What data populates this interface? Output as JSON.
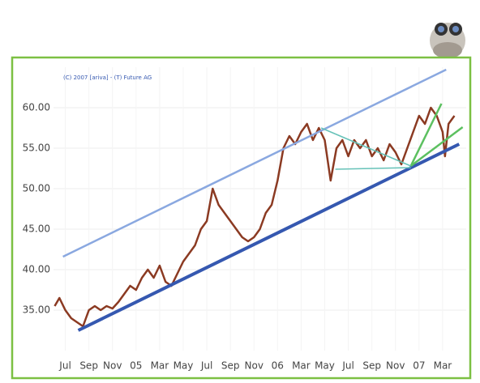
{
  "chart_data": {
    "type": "line",
    "note_text": "(C) 2007 [ariva] - (T) Future AG",
    "xlim": [
      -1,
      34
    ],
    "xticks": [
      {
        "value": 0,
        "label": "Jul"
      },
      {
        "value": 2,
        "label": "Sep"
      },
      {
        "value": 4,
        "label": "Nov"
      },
      {
        "value": 6,
        "label": "05"
      },
      {
        "value": 8,
        "label": "Mar"
      },
      {
        "value": 10,
        "label": "May"
      },
      {
        "value": 12,
        "label": "Jul"
      },
      {
        "value": 14,
        "label": "Sep"
      },
      {
        "value": 16,
        "label": "Nov"
      },
      {
        "value": 18,
        "label": "06"
      },
      {
        "value": 20,
        "label": "Mar"
      },
      {
        "value": 22,
        "label": "May"
      },
      {
        "value": 24,
        "label": "Jul"
      },
      {
        "value": 26,
        "label": "Sep"
      },
      {
        "value": 28,
        "label": "Nov"
      },
      {
        "value": 30,
        "label": "07"
      },
      {
        "value": 32,
        "label": "Mar"
      }
    ],
    "ylim": [
      30,
      65
    ],
    "yticks": [
      {
        "value": 35,
        "label": "35.00"
      },
      {
        "value": 40,
        "label": "40.00"
      },
      {
        "value": 45,
        "label": "45.00"
      },
      {
        "value": 50,
        "label": "50.00"
      },
      {
        "value": 55,
        "label": "55.00"
      },
      {
        "value": 60,
        "label": "60.00"
      }
    ],
    "grid": true,
    "series": [
      {
        "color": "#8b3a22",
        "width": 2.5,
        "x": [
          -0.9,
          -0.5,
          0,
          0.5,
          1,
          1.5,
          2,
          2.5,
          3,
          3.5,
          4,
          4.5,
          5,
          5.5,
          6,
          6.5,
          7,
          7.5,
          8,
          8.5,
          9,
          9.5,
          10,
          10.5,
          11,
          11.5,
          12,
          12.5,
          13,
          13.5,
          14,
          14.5,
          15,
          15.5,
          16,
          16.5,
          17,
          17.5,
          18,
          18.5,
          19,
          19.5,
          20,
          20.5,
          21,
          21.5,
          22,
          22.5,
          23,
          23.5,
          24,
          24.5,
          25,
          25.5,
          26,
          26.5,
          27,
          27.5,
          28,
          28.5,
          29,
          29.5,
          30,
          30.5,
          31,
          31.5,
          32,
          32.2,
          32.5,
          33
        ],
        "values": [
          35.5,
          36.5,
          35,
          34,
          33.5,
          33,
          35,
          35.5,
          35,
          35.5,
          35.2,
          36,
          37,
          38,
          37.5,
          39,
          40,
          39,
          40.5,
          38.5,
          38,
          39.5,
          41,
          42,
          43,
          45,
          46,
          50,
          48,
          47,
          46,
          45,
          44,
          43.5,
          44,
          45,
          47,
          48,
          51,
          55,
          56.5,
          55.5,
          57,
          58,
          56,
          57.5,
          56,
          51,
          55,
          56,
          54,
          56,
          55,
          56,
          54,
          55,
          53.5,
          55.5,
          54.5,
          53,
          55,
          57,
          59,
          58,
          60,
          59,
          57,
          54,
          58,
          59
        ]
      },
      {
        "color": "#8aa8e0",
        "width": 2.5,
        "x": [
          -0.2,
          32.3
        ],
        "values": [
          41.6,
          64.7
        ]
      },
      {
        "color": "#3558b0",
        "width": 4,
        "x": [
          1.1,
          33.4
        ],
        "values": [
          32.5,
          55.5
        ]
      },
      {
        "color": "#5cc060",
        "width": 2.5,
        "x": [
          29.3,
          31.9
        ],
        "values": [
          52.8,
          60.5
        ]
      },
      {
        "color": "#5cc060",
        "width": 2.5,
        "x": [
          29.3,
          33.7
        ],
        "values": [
          52.8,
          57.6
        ]
      },
      {
        "color": "#66c2b8",
        "width": 1.5,
        "x": [
          21.7,
          29.3
        ],
        "values": [
          57.5,
          52.8
        ]
      },
      {
        "color": "#66c2b8",
        "width": 1.5,
        "x": [
          22.9,
          29.3
        ],
        "values": [
          52.4,
          52.6
        ]
      }
    ]
  }
}
